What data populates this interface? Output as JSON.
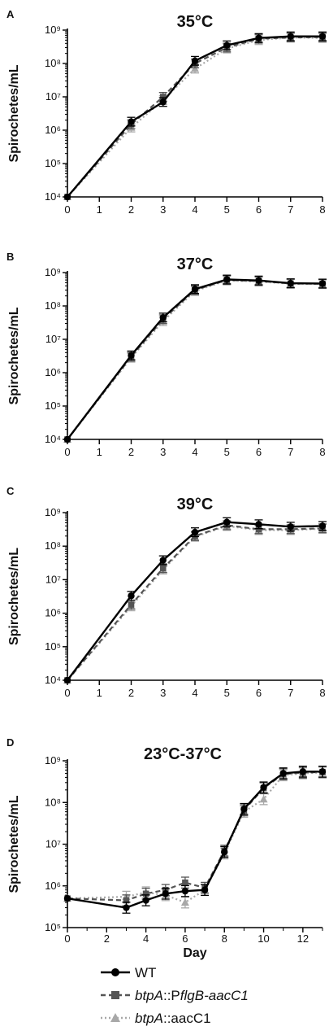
{
  "chart_data": [
    {
      "type": "line",
      "panel": "A",
      "title": "35°C",
      "ylabel": "Spirochetes/mL",
      "xlabel": "",
      "yscale": "log",
      "xlim": [
        0,
        8
      ],
      "ylim": [
        10000,
        1000000000
      ],
      "x_ticks": [
        "0",
        "1",
        "2",
        "3",
        "4",
        "5",
        "6",
        "7",
        "8"
      ],
      "y_ticks": [
        "10⁴",
        "10⁵",
        "10⁶",
        "10⁷",
        "10⁸",
        "10⁹"
      ],
      "series": [
        {
          "name": "WT",
          "x": [
            0,
            2,
            3,
            4,
            5,
            6,
            7,
            8
          ],
          "y": [
            10000,
            1800000,
            7000000,
            120000000,
            350000000,
            580000000,
            650000000,
            650000000
          ]
        },
        {
          "name": "btpA::PflgB-aacC1",
          "x": [
            0,
            2,
            3,
            4,
            5,
            6,
            7,
            8
          ],
          "y": [
            10000,
            1500000,
            10000000,
            100000000,
            300000000,
            550000000,
            600000000,
            620000000
          ]
        },
        {
          "name": "btpA::aacC1",
          "x": [
            0,
            2,
            3,
            4,
            5,
            6,
            7,
            8
          ],
          "y": [
            10000,
            1200000,
            8000000,
            70000000,
            280000000,
            500000000,
            600000000,
            580000000
          ]
        }
      ]
    },
    {
      "type": "line",
      "panel": "B",
      "title": "37°C",
      "ylabel": "Spirochetes/mL",
      "xlabel": "",
      "yscale": "log",
      "xlim": [
        0,
        8
      ],
      "ylim": [
        10000,
        1000000000
      ],
      "x_ticks": [
        "0",
        "1",
        "2",
        "3",
        "4",
        "5",
        "6",
        "7",
        "8"
      ],
      "y_ticks": [
        "10⁴",
        "10⁵",
        "10⁶",
        "10⁷",
        "10⁸",
        "10⁹"
      ],
      "series": [
        {
          "name": "WT",
          "x": [
            0,
            2,
            3,
            4,
            5,
            6,
            7,
            8
          ],
          "y": [
            10000,
            3300000,
            45000000,
            320000000,
            620000000,
            580000000,
            480000000,
            470000000
          ]
        },
        {
          "name": "btpA::PflgB-aacC1",
          "x": [
            0,
            2,
            3,
            4,
            5,
            6,
            7,
            8
          ],
          "y": [
            10000,
            3000000,
            40000000,
            300000000,
            600000000,
            560000000,
            470000000,
            460000000
          ]
        },
        {
          "name": "btpA::aacC1",
          "x": [
            0,
            2,
            3,
            4,
            5,
            6,
            7,
            8
          ],
          "y": [
            10000,
            2800000,
            35000000,
            280000000,
            580000000,
            540000000,
            460000000,
            450000000
          ]
        }
      ]
    },
    {
      "type": "line",
      "panel": "C",
      "title": "39°C",
      "ylabel": "Spirochetes/mL",
      "xlabel": "",
      "yscale": "log",
      "xlim": [
        0,
        8
      ],
      "ylim": [
        10000,
        1000000000
      ],
      "x_ticks": [
        "0",
        "1",
        "2",
        "3",
        "4",
        "5",
        "6",
        "7",
        "8"
      ],
      "y_ticks": [
        "10⁴",
        "10⁵",
        "10⁶",
        "10⁷",
        "10⁸",
        "10⁹"
      ],
      "series": [
        {
          "name": "WT",
          "x": [
            0,
            2,
            3,
            4,
            5,
            6,
            7,
            8
          ],
          "y": [
            10000,
            3300000,
            38000000,
            260000000,
            520000000,
            450000000,
            380000000,
            400000000
          ]
        },
        {
          "name": "btpA::PflgB-aacC1",
          "x": [
            0,
            2,
            3,
            4,
            5,
            6,
            7,
            8
          ],
          "y": [
            10000,
            1800000,
            22000000,
            200000000,
            420000000,
            320000000,
            320000000,
            340000000
          ]
        },
        {
          "name": "btpA::aacC1",
          "x": [
            0,
            2,
            3,
            4,
            5,
            6,
            7,
            8
          ],
          "y": [
            10000,
            1600000,
            20000000,
            190000000,
            400000000,
            300000000,
            300000000,
            330000000
          ]
        }
      ]
    },
    {
      "type": "line",
      "panel": "D",
      "title": "23°C-37°C",
      "ylabel": "Spirochetes/mL",
      "xlabel": "Day",
      "yscale": "log",
      "xlim": [
        0,
        13
      ],
      "ylim": [
        100000,
        1000000000
      ],
      "x_ticks": [
        "0",
        "2",
        "4",
        "6",
        "8",
        "10",
        "12"
      ],
      "y_ticks": [
        "10⁵",
        "10⁶",
        "10⁷",
        "10⁸",
        "10⁹"
      ],
      "series": [
        {
          "name": "WT",
          "x": [
            0,
            3,
            4,
            5,
            6,
            7,
            8,
            9,
            10,
            11,
            12,
            13
          ],
          "y": [
            500000,
            300000,
            450000,
            650000,
            750000,
            800000,
            6500000,
            70000000,
            230000000,
            500000000,
            550000000,
            550000000
          ]
        },
        {
          "name": "btpA::PflgB-aacC1",
          "x": [
            0,
            3,
            4,
            5,
            6,
            7,
            8,
            9,
            10,
            11,
            12,
            13
          ],
          "y": [
            500000,
            450000,
            650000,
            800000,
            1200000,
            900000,
            7000000,
            65000000,
            220000000,
            480000000,
            520000000,
            540000000
          ]
        },
        {
          "name": "btpA::aacC1",
          "x": [
            0,
            3,
            4,
            5,
            6,
            7,
            8,
            9,
            10,
            11,
            12,
            13
          ],
          "y": [
            500000,
            550000,
            700000,
            600000,
            400000,
            800000,
            6000000,
            60000000,
            120000000,
            450000000,
            500000000,
            520000000
          ]
        }
      ]
    }
  ],
  "legend": {
    "wt": {
      "label": "WT",
      "color": "#000000",
      "marker": "circle",
      "line": "solid"
    },
    "flgb": {
      "prefix": "btpA",
      "middle": "::P",
      "italic": "flgB-aacC1",
      "color": "#555555",
      "marker": "square",
      "line": "dashed"
    },
    "aacc1": {
      "prefix": "btpA",
      "suffix": "::aacC1",
      "color": "#a8a8a8",
      "marker": "triangle",
      "line": "dotted"
    }
  }
}
